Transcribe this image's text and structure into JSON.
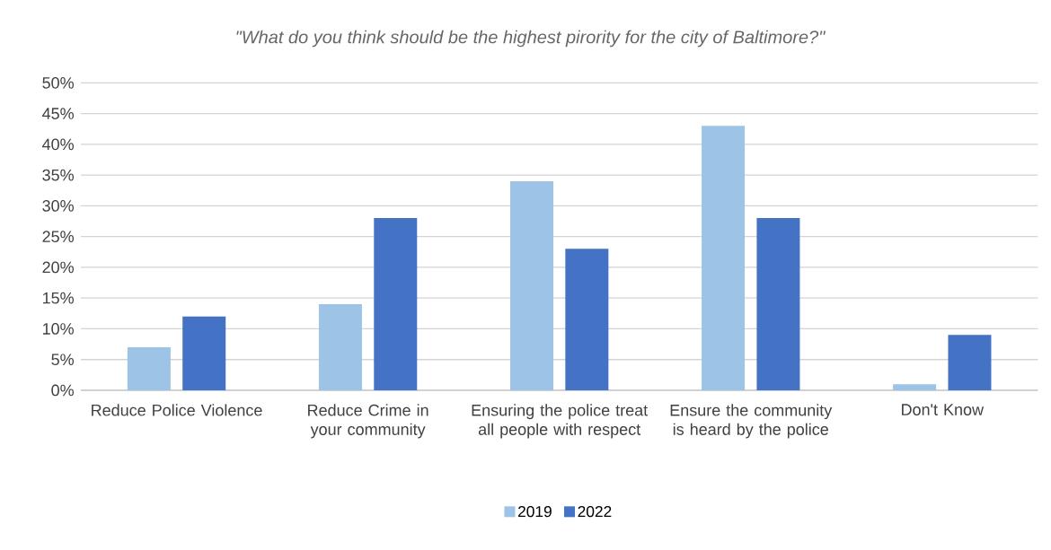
{
  "chart_data": {
    "type": "bar",
    "title": "\"What do you think should be the highest pirority for the city of Baltimore?\"",
    "categories": [
      "Reduce Police Violence",
      "Reduce Crime in your community",
      "Ensuring the police treat all people with respect",
      "Ensure the community is heard by the police",
      "Don't Know"
    ],
    "series": [
      {
        "name": "2019",
        "color": "#9dc3e6",
        "values": [
          7,
          14,
          34,
          43,
          1
        ]
      },
      {
        "name": "2022",
        "color": "#4472c4",
        "values": [
          12,
          28,
          23,
          28,
          9
        ]
      }
    ],
    "ylim": [
      0,
      50
    ],
    "yticks": [
      {
        "value": 0,
        "label": "0%"
      },
      {
        "value": 5,
        "label": "5%"
      },
      {
        "value": 10,
        "label": "10%"
      },
      {
        "value": 15,
        "label": "15%"
      },
      {
        "value": 20,
        "label": "20%"
      },
      {
        "value": 25,
        "label": "25%"
      },
      {
        "value": 30,
        "label": "30%"
      },
      {
        "value": 35,
        "label": "35%"
      },
      {
        "value": 40,
        "label": "40%"
      },
      {
        "value": 45,
        "label": "45%"
      },
      {
        "value": 50,
        "label": "50%"
      }
    ],
    "grid": "y",
    "legend": "bottom"
  }
}
